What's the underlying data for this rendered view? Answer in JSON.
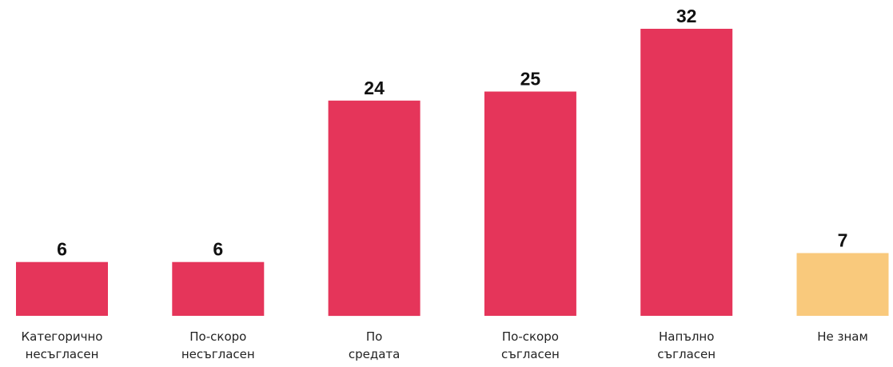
{
  "chart_data": {
    "type": "bar",
    "categories": [
      [
        "Категорично",
        "несъгласен"
      ],
      [
        "По-скоро",
        "несъгласен"
      ],
      [
        "По",
        "средата"
      ],
      [
        "По-скоро",
        "съгласен"
      ],
      [
        "Напълно",
        "съгласен"
      ],
      [
        "Не знам"
      ]
    ],
    "values": [
      6,
      6,
      24,
      25,
      32,
      7
    ],
    "colors": [
      "#e5355a",
      "#e5355a",
      "#e5355a",
      "#e5355a",
      "#e5355a",
      "#f9c97c"
    ],
    "ylim": [
      0,
      32
    ],
    "grid": false,
    "legend": "none"
  }
}
